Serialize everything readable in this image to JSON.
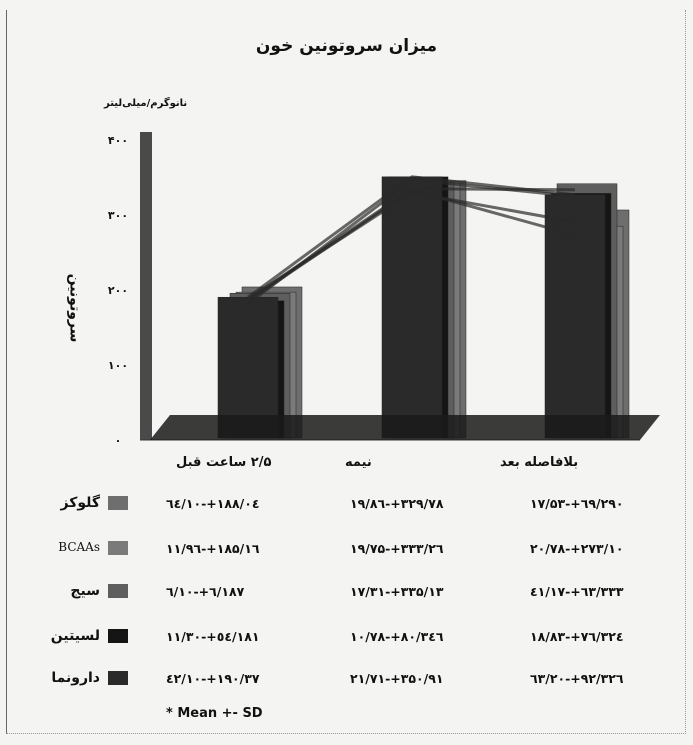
{
  "chart_data": {
    "type": "bar",
    "title": "میزان سروتونین خون",
    "ylabel": "سروتونین",
    "unit_label": "نانوگرم/میلی‌لیتر",
    "ylim": [
      0,
      400
    ],
    "yticks": [
      "۰",
      "۱۰۰",
      "۲۰۰",
      "۳۰۰",
      "۴۰۰"
    ],
    "categories": [
      "۲/۵ ساعت قبل",
      "نیمه",
      "بلافاصله بعد"
    ],
    "series": [
      {
        "name": "گلوکز",
        "values": [
          188.04,
          329.78,
          290.69
        ],
        "display": [
          "۱۸۸/۰٤+-۱۰/٦٤",
          "۳۲۹/۷۸+-۱۹/۸٦",
          "۲۹۰/٦۹+-۱۷/۵۳"
        ],
        "color": "#6e6e6e"
      },
      {
        "name": "BCAAs",
        "values": [
          185.16,
          333.26,
          273.1
        ],
        "display": [
          "۱۸۵/۱٦+-۱۱/۹٦",
          "۳۳۳/۲٦+-۱۹/۷۵",
          "۲۷۳/۱۰+-۲۰/۷۸"
        ],
        "color": "#7a7a7a"
      },
      {
        "name": "سیج",
        "values": [
          187.6,
          335.13,
          333.63
        ],
        "display": [
          "۱۸۷/٦+-۱۰/٦",
          "۳۳۵/۱۳+-۱۷/۳۱",
          "۳۳۳/٦۳+-۱۷/٤۱"
        ],
        "color": "#5e5e5e"
      },
      {
        "name": "لسیتین",
        "values": [
          181.54,
          346.8,
          324.76
        ],
        "display": [
          "۱۸۱/٥٤+-۱۱/۳۰",
          "۳٤٦/۸۰+-۱۰/۷۸",
          "۳۲٤/۷٦+-۱۸/۸۳"
        ],
        "color": "#151515"
      },
      {
        "name": "دارونما",
        "values": [
          190.37,
          350.91,
          326.92
        ],
        "display": [
          "۱۹۰/۳۷+-۱۰/٤۲",
          "۳۵۰/۹۱+-۲۱/۷۱",
          "۳۲٦/۹۲+-۲۰/٦۳"
        ],
        "color": "#2a2a2a"
      }
    ],
    "footnote": "* Mean +- SD",
    "grid": false,
    "legend": "bottom-table"
  }
}
